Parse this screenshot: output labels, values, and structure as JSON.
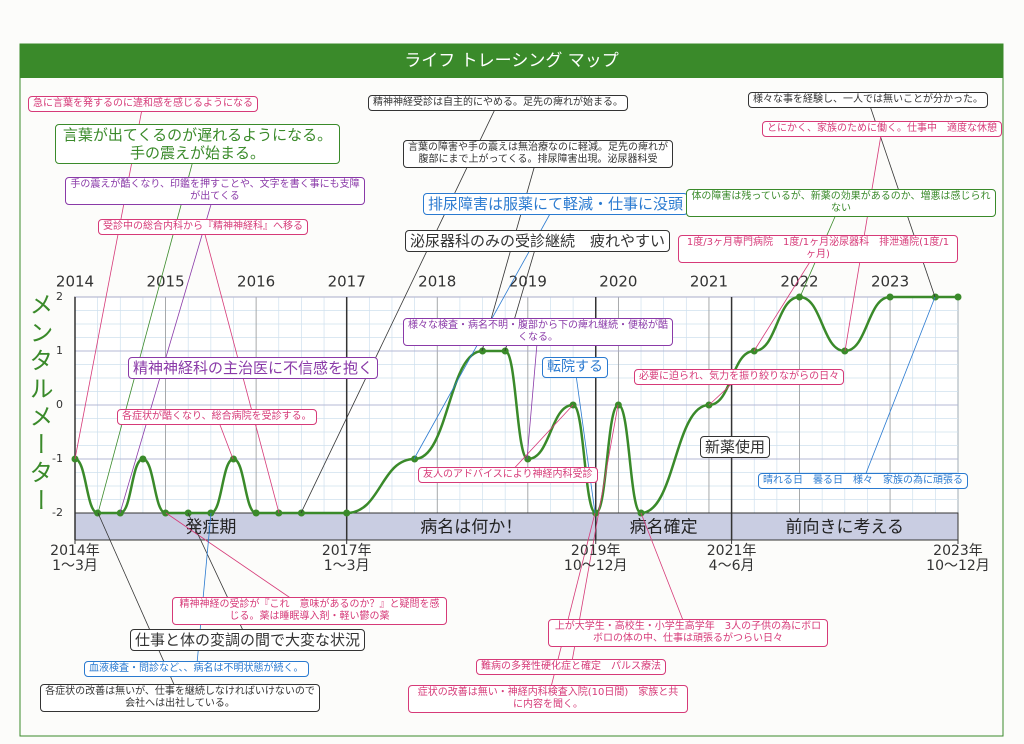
{
  "chart_data": {
    "type": "line",
    "title": "ライフ トレーシング マップ",
    "y_label": "メンタルメーター",
    "x": [
      2014,
      2014.25,
      2014.5,
      2014.75,
      2015,
      2015.25,
      2015.5,
      2015.75,
      2016,
      2016.25,
      2016.5,
      2017,
      2017.75,
      2018.5,
      2018.75,
      2019,
      2019.5,
      2019.75,
      2020,
      2020.25,
      2021,
      2021.5,
      2022,
      2022.5,
      2023,
      2023.5,
      2023.75
    ],
    "series": [
      {
        "color": "#3a8a2a",
        "values": [
          -1,
          -2,
          -2,
          -1,
          -2,
          -2,
          -2,
          -1,
          -2,
          -2,
          -2,
          -2,
          -1,
          1,
          1,
          -1,
          0,
          -2,
          0,
          -2,
          0,
          1,
          2,
          1,
          2,
          2,
          2
        ]
      }
    ],
    "xlim": [
      2014,
      2023.75
    ],
    "xticks": [
      2014,
      2015,
      2016,
      2017,
      2018,
      2019,
      2020,
      2021,
      2022,
      2023
    ],
    "ylim": [
      -2,
      2
    ],
    "yticks": [
      2,
      1,
      0,
      -1,
      -2
    ],
    "grid": true,
    "period_ticks": [
      {
        "value": 2014,
        "label": "2014年\n1～3月"
      },
      {
        "value": 2017,
        "label": "2017年\n1～3月"
      },
      {
        "value": 2019.75,
        "label": "2019年\n10～12月"
      },
      {
        "value": 2021.25,
        "label": "2021年\n4～6月"
      },
      {
        "value": 2023.75,
        "label": "2023年\n10～12月"
      }
    ],
    "phases": [
      {
        "label": "発症期",
        "start": 2014,
        "end": 2017
      },
      {
        "label": "病名は何か！",
        "start": 2017,
        "end": 2019.75
      },
      {
        "label": "病名確定",
        "start": 2019.75,
        "end": 2021.25
      },
      {
        "label": "前向きに考える",
        "start": 2021.25,
        "end": 2023.75
      }
    ],
    "annotations": [
      {
        "text": "急に言葉を発するのに違和感を感じるようになる",
        "color": "#d63a78"
      },
      {
        "text": "言葉が出てくるのが遅れるようになる。手の震えが始まる。",
        "color": "#3a8a2a"
      },
      {
        "text": "手の震えが酷くなり、印鑑を押すことや、文字を書く事にも支障が出てくる",
        "color": "#8a3aa8"
      },
      {
        "text": "受診中の総合内科から『精神神経科』へ移る",
        "color": "#d63a78"
      },
      {
        "text": "精神神経科の主治医に不信感を抱く",
        "color": "#8a3aa8"
      },
      {
        "text": "各症状が酷くなり、総合病院を受診する。",
        "color": "#d63a78"
      },
      {
        "text": "精神神経受診は自主的にやめる。足先の痺れが始まる。",
        "color": "#333333"
      },
      {
        "text": "言葉の障害や手の震えは無治療なのに軽減。足先の痺れが腹部にまで上がってくる。排尿障害出現。泌尿器科受",
        "color": "#333333"
      },
      {
        "text": "排尿障害は服薬にて軽減・仕事に没頭",
        "color": "#2a7ad0"
      },
      {
        "text": "泌尿器科のみの受診継続　疲れやすい",
        "color": "#333333"
      },
      {
        "text": "様々な検査・病名不明・腹部から下の痺れ継続・便秘が酷くなる。",
        "color": "#8a3aa8"
      },
      {
        "text": "転院する",
        "color": "#2a7ad0"
      },
      {
        "text": "友人のアドバイスにより神経内科受診",
        "color": "#d63a78"
      },
      {
        "text": "様々な事を経験し、一人では無いことが分かった。",
        "color": "#333333"
      },
      {
        "text": "とにかく、家族のために働く。仕事中　適度な休憩",
        "color": "#d63a78"
      },
      {
        "text": "体の障害は残っているが、新薬の効果があるのか、増悪は感じられない",
        "color": "#3a8a2a"
      },
      {
        "text": "1度/3ヶ月専門病院　1度/1ヶ月泌尿器科　排泄通院(1度/1ヶ月)",
        "color": "#d63a78"
      },
      {
        "text": "必要に迫られ、気力を振り絞りながらの日々",
        "color": "#d63a78"
      },
      {
        "text": "新薬使用",
        "color": "#333333"
      },
      {
        "text": "晴れる日　曇る日　様々　家族の為に頑張る",
        "color": "#2a7ad0"
      },
      {
        "text": "精神神経の受診が『これ　意味があるのか？』と疑問を感じる。薬は睡眠導入剤・軽い鬱の薬",
        "color": "#d63a78"
      },
      {
        "text": "仕事と体の変調の間で大変な状況",
        "color": "#333333"
      },
      {
        "text": "血液検査・問診など、、病名は不明状態が続く。",
        "color": "#2a7ad0"
      },
      {
        "text": "各症状の改善は無いが、仕事を継続しなければいけないので会社へは出社している。",
        "color": "#333333"
      },
      {
        "text": "上が大学生・高校生・小学生高学年　3人の子供の為にボロボロの体の中、仕事は頑張るがつらい日々",
        "color": "#d63a78"
      },
      {
        "text": "難病の多発性硬化症と確定　パルス療法",
        "color": "#d63a78"
      },
      {
        "text": "症状の改善は無い・神経内科検査入院(10日間)　家族と共に内容を聞く。",
        "color": "#d63a78"
      }
    ]
  }
}
